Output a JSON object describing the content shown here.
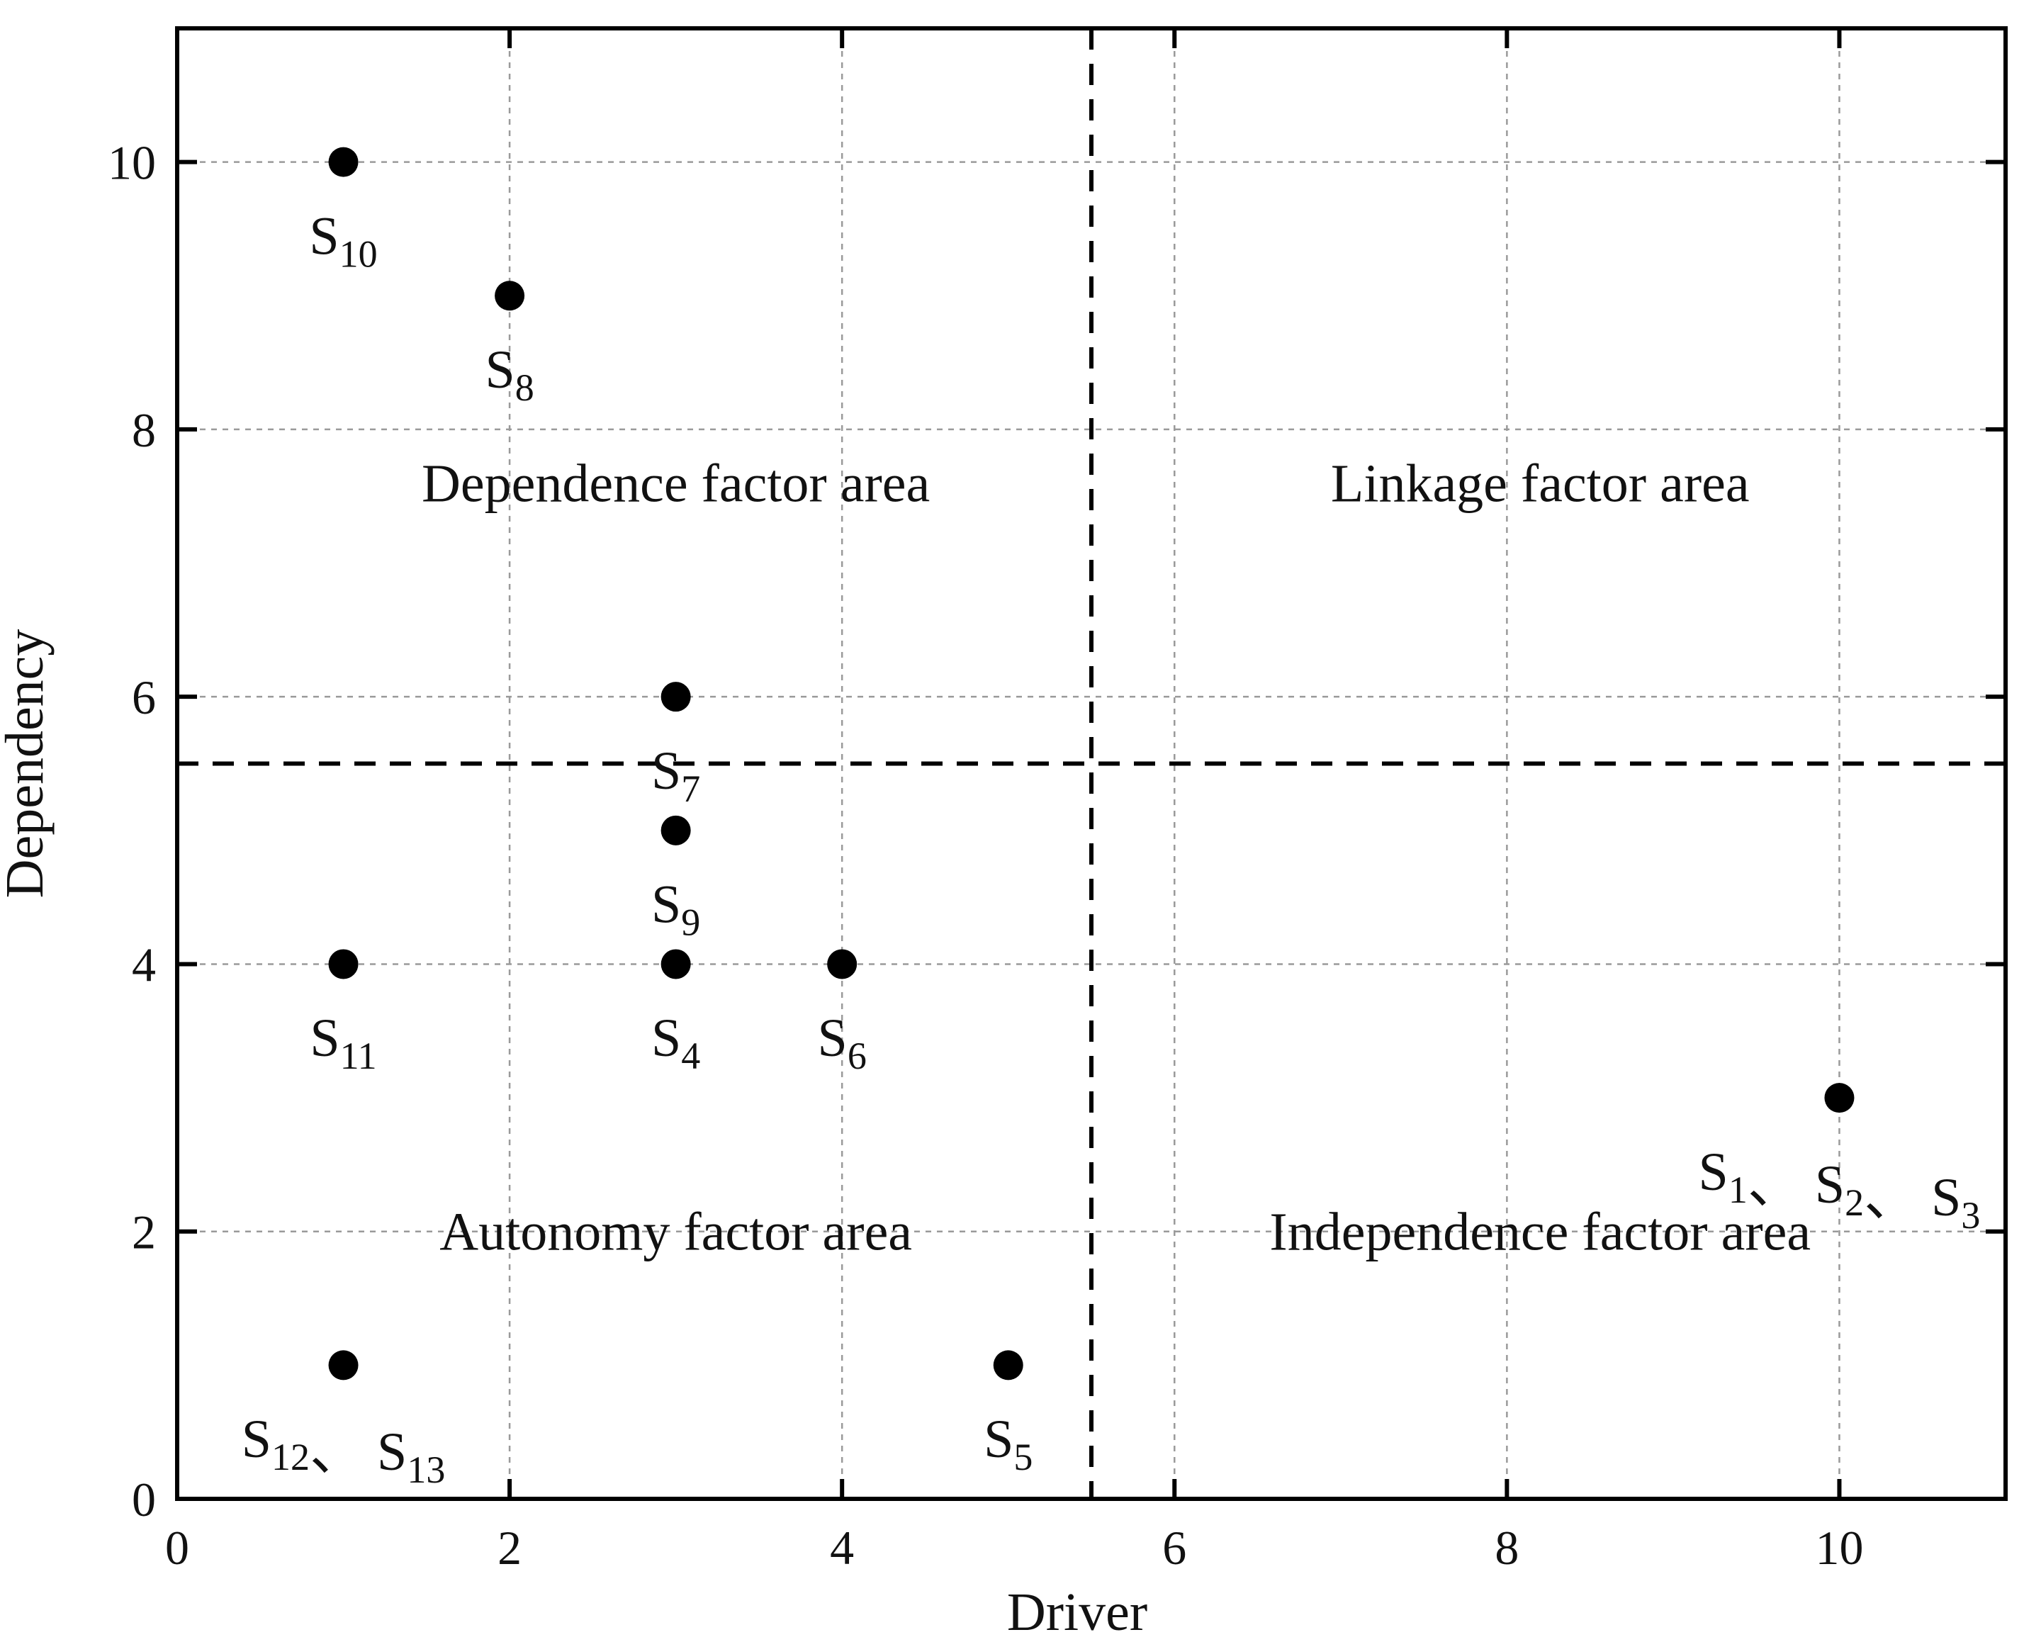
{
  "chart_data": {
    "type": "scatter",
    "title": "",
    "xlabel": "Driver",
    "ylabel": "Dependency",
    "xlim": [
      0,
      11
    ],
    "ylim": [
      0,
      11
    ],
    "x_ticks": [
      0,
      2,
      4,
      6,
      8,
      10
    ],
    "y_ticks": [
      0,
      2,
      4,
      6,
      8,
      10
    ],
    "grid": true,
    "thresholds": {
      "x": 5.5,
      "y": 5.5
    },
    "regions": [
      {
        "label": "Dependence factor area",
        "x": 3,
        "y": 7.6
      },
      {
        "label": "Linkage factor area",
        "x": 8.2,
        "y": 7.6
      },
      {
        "label": "Autonomy factor area",
        "x": 3,
        "y": 2
      },
      {
        "label": "Independence factor area",
        "x": 8.2,
        "y": 2
      }
    ],
    "points": [
      {
        "x": 1,
        "y": 10
      },
      {
        "x": 2,
        "y": 9
      },
      {
        "x": 3,
        "y": 6
      },
      {
        "x": 3,
        "y": 5
      },
      {
        "x": 1,
        "y": 4
      },
      {
        "x": 3,
        "y": 4
      },
      {
        "x": 4,
        "y": 4
      },
      {
        "x": 10,
        "y": 3
      },
      {
        "x": 1,
        "y": 1
      },
      {
        "x": 5,
        "y": 1
      }
    ],
    "point_labels": [
      {
        "parts": [
          {
            "text": "S",
            "sub": "10"
          }
        ],
        "x": 1,
        "y": 10,
        "dx": 0,
        "dy": 0.55
      },
      {
        "parts": [
          {
            "text": "S",
            "sub": "8"
          }
        ],
        "x": 2,
        "y": 9,
        "dx": 0,
        "dy": 0.55
      },
      {
        "parts": [
          {
            "text": "S",
            "sub": "7"
          }
        ],
        "x": 3,
        "y": 6,
        "dx": 0,
        "dy": 0.55
      },
      {
        "parts": [
          {
            "text": "S",
            "sub": "9"
          }
        ],
        "x": 3,
        "y": 5,
        "dx": 0,
        "dy": 0.55
      },
      {
        "parts": [
          {
            "text": "S",
            "sub": "11"
          }
        ],
        "x": 1,
        "y": 4,
        "dx": 0,
        "dy": 0.55
      },
      {
        "parts": [
          {
            "text": "S",
            "sub": "4"
          }
        ],
        "x": 3,
        "y": 4,
        "dx": 0,
        "dy": 0.55
      },
      {
        "parts": [
          {
            "text": "S",
            "sub": "6"
          }
        ],
        "x": 4,
        "y": 4,
        "dx": 0,
        "dy": 0.55
      },
      {
        "parts": [
          {
            "text": "S",
            "sub": "1"
          },
          {
            "text": "、 "
          },
          {
            "text": "S",
            "sub": "2"
          },
          {
            "text": "、 "
          },
          {
            "text": "S",
            "sub": "3"
          }
        ],
        "x": 10,
        "y": 3,
        "dx": 0,
        "dy": 0.55
      },
      {
        "parts": [
          {
            "text": "S",
            "sub": "12"
          },
          {
            "text": "、 "
          },
          {
            "text": "S",
            "sub": "13"
          }
        ],
        "x": 1,
        "y": 1,
        "dx": 0,
        "dy": 0.55
      },
      {
        "parts": [
          {
            "text": "S",
            "sub": "5"
          }
        ],
        "x": 5,
        "y": 1,
        "dx": 0,
        "dy": 0.55
      }
    ]
  }
}
